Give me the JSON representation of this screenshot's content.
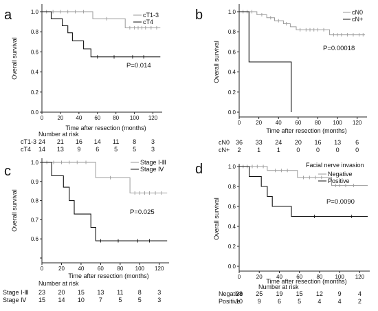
{
  "chart_data": [
    {
      "type": "line",
      "panel_label": "a",
      "xlabel": "Time after resection (months)",
      "ylabel": "Overall survival",
      "xlim": [
        0,
        130
      ],
      "ylim": [
        0,
        1.0
      ],
      "x_ticks": [
        0,
        20,
        40,
        60,
        80,
        100,
        120
      ],
      "y_ticks": [
        0.0,
        0.2,
        0.4,
        0.6,
        0.8,
        1.0
      ],
      "y_tick_labels": [
        "0.0",
        "0.2",
        "0.4",
        "0.6",
        "0.8",
        "1.0"
      ],
      "legend_position": "top-right",
      "p_value": "P=0.014",
      "risk_title": "Number at risk",
      "series": [
        {
          "name": "cT1-3",
          "color": "#9a9a9a",
          "steps": [
            [
              0,
              1.0
            ],
            [
              55,
              1.0
            ],
            [
              55,
              0.93
            ],
            [
              90,
              0.93
            ],
            [
              90,
              0.84
            ],
            [
              128,
              0.84
            ]
          ],
          "censors": [
            [
              5,
              1.0
            ],
            [
              12,
              1.0
            ],
            [
              20,
              1.0
            ],
            [
              28,
              1.0
            ],
            [
              36,
              1.0
            ],
            [
              45,
              1.0
            ],
            [
              70,
              0.93
            ],
            [
              95,
              0.84
            ],
            [
              100,
              0.84
            ],
            [
              104,
              0.84
            ],
            [
              108,
              0.84
            ],
            [
              112,
              0.84
            ],
            [
              118,
              0.84
            ],
            [
              124,
              0.84
            ]
          ]
        },
        {
          "name": "cT4",
          "color": "#111111",
          "steps": [
            [
              0,
              1.0
            ],
            [
              10,
              1.0
            ],
            [
              10,
              0.93
            ],
            [
              22,
              0.93
            ],
            [
              22,
              0.86
            ],
            [
              28,
              0.86
            ],
            [
              28,
              0.79
            ],
            [
              33,
              0.79
            ],
            [
              33,
              0.71
            ],
            [
              45,
              0.71
            ],
            [
              45,
              0.63
            ],
            [
              53,
              0.63
            ],
            [
              53,
              0.55
            ],
            [
              128,
              0.55
            ]
          ],
          "censors": [
            [
              60,
              0.55
            ],
            [
              78,
              0.55
            ],
            [
              98,
              0.55
            ],
            [
              110,
              0.55
            ]
          ]
        }
      ],
      "risk_table": {
        "rows": [
          {
            "label": "cT1-3",
            "values": [
              "24",
              "21",
              "16",
              "14",
              "11",
              "8",
              "3"
            ]
          },
          {
            "label": "cT4",
            "values": [
              "14",
              "13",
              "9",
              "6",
              "5",
              "5",
              "3"
            ]
          }
        ]
      }
    },
    {
      "type": "line",
      "panel_label": "b",
      "xlabel": "Time after resection (months)",
      "ylabel": "Overall survival",
      "xlim": [
        0,
        130
      ],
      "ylim": [
        0,
        1.0
      ],
      "x_ticks": [
        0,
        20,
        40,
        60,
        80,
        100,
        120
      ],
      "y_ticks": [
        0.0,
        0.2,
        0.4,
        0.6,
        0.8,
        1.0
      ],
      "y_tick_labels": [
        "0.0",
        "0.2",
        "0.4",
        "0.6",
        "0.8",
        "1.0"
      ],
      "legend_position": "top-right",
      "p_value": "P=0.00018",
      "risk_title": "",
      "series": [
        {
          "name": "cN0",
          "color": "#9a9a9a",
          "steps": [
            [
              0,
              1.0
            ],
            [
              18,
              1.0
            ],
            [
              18,
              0.97
            ],
            [
              28,
              0.97
            ],
            [
              28,
              0.94
            ],
            [
              36,
              0.94
            ],
            [
              36,
              0.91
            ],
            [
              45,
              0.91
            ],
            [
              45,
              0.88
            ],
            [
              52,
              0.88
            ],
            [
              52,
              0.85
            ],
            [
              58,
              0.85
            ],
            [
              58,
              0.82
            ],
            [
              92,
              0.82
            ],
            [
              92,
              0.77
            ],
            [
              128,
              0.77
            ]
          ],
          "censors": [
            [
              4,
              1.0
            ],
            [
              8,
              1.0
            ],
            [
              13,
              1.0
            ],
            [
              23,
              0.97
            ],
            [
              32,
              0.94
            ],
            [
              40,
              0.91
            ],
            [
              48,
              0.88
            ],
            [
              62,
              0.82
            ],
            [
              68,
              0.82
            ],
            [
              72,
              0.82
            ],
            [
              76,
              0.82
            ],
            [
              80,
              0.82
            ],
            [
              86,
              0.82
            ],
            [
              96,
              0.77
            ],
            [
              100,
              0.77
            ],
            [
              104,
              0.77
            ],
            [
              110,
              0.77
            ],
            [
              116,
              0.77
            ],
            [
              122,
              0.77
            ],
            [
              126,
              0.77
            ]
          ]
        },
        {
          "name": "cN+",
          "color": "#111111",
          "steps": [
            [
              0,
              1.0
            ],
            [
              10,
              1.0
            ],
            [
              10,
              0.5
            ],
            [
              53,
              0.5
            ],
            [
              53,
              0.0
            ]
          ],
          "censors": []
        }
      ],
      "risk_table": {
        "rows": [
          {
            "label": "cN0",
            "values": [
              "36",
              "33",
              "24",
              "20",
              "16",
              "13",
              "6"
            ]
          },
          {
            "label": "cN+",
            "values": [
              "2",
              "1",
              "1",
              "0",
              "0",
              "0",
              "0"
            ]
          }
        ]
      }
    },
    {
      "type": "line",
      "panel_label": "c",
      "xlabel": "Time after resection (months)",
      "ylabel": "Overall survival",
      "xlim": [
        0,
        130
      ],
      "ylim": [
        0.5,
        1.0
      ],
      "x_ticks": [
        0,
        20,
        40,
        60,
        80,
        100,
        120
      ],
      "y_ticks": [
        0.5,
        0.6,
        0.7,
        0.8,
        0.9,
        1.0
      ],
      "y_tick_labels": [
        "",
        "0.6",
        "0.7",
        "0.8",
        "0.9",
        "1.0"
      ],
      "legend_position": "top-right",
      "p_value": "P=0.025",
      "risk_title": "Number at risk",
      "series": [
        {
          "name": "Stage Ⅰ-Ⅲ",
          "color": "#9a9a9a",
          "steps": [
            [
              0,
              1.0
            ],
            [
              55,
              1.0
            ],
            [
              55,
              0.92
            ],
            [
              90,
              0.92
            ],
            [
              90,
              0.84
            ],
            [
              128,
              0.84
            ]
          ],
          "censors": [
            [
              5,
              1.0
            ],
            [
              12,
              1.0
            ],
            [
              20,
              1.0
            ],
            [
              28,
              1.0
            ],
            [
              36,
              1.0
            ],
            [
              45,
              1.0
            ],
            [
              70,
              0.92
            ],
            [
              95,
              0.84
            ],
            [
              100,
              0.84
            ],
            [
              105,
              0.84
            ],
            [
              110,
              0.84
            ],
            [
              116,
              0.84
            ],
            [
              122,
              0.84
            ]
          ]
        },
        {
          "name": "Stage Ⅳ",
          "color": "#111111",
          "steps": [
            [
              0,
              1.0
            ],
            [
              10,
              1.0
            ],
            [
              10,
              0.93
            ],
            [
              22,
              0.93
            ],
            [
              22,
              0.87
            ],
            [
              28,
              0.87
            ],
            [
              28,
              0.8
            ],
            [
              33,
              0.8
            ],
            [
              33,
              0.73
            ],
            [
              50,
              0.73
            ],
            [
              50,
              0.66
            ],
            [
              55,
              0.66
            ],
            [
              55,
              0.59
            ],
            [
              128,
              0.59
            ]
          ],
          "censors": [
            [
              60,
              0.59
            ],
            [
              78,
              0.59
            ],
            [
              98,
              0.59
            ],
            [
              110,
              0.59
            ]
          ]
        }
      ],
      "risk_table": {
        "rows": [
          {
            "label": "Stage Ⅰ-Ⅲ",
            "values": [
              "23",
              "20",
              "15",
              "13",
              "11",
              "8",
              "3"
            ]
          },
          {
            "label": "Stage Ⅳ",
            "values": [
              "15",
              "14",
              "10",
              "7",
              "5",
              "5",
              "3"
            ]
          }
        ]
      }
    },
    {
      "type": "line",
      "panel_label": "d",
      "xlabel": "Time after resection (months)",
      "ylabel": "Overall survival",
      "xlim": [
        0,
        130
      ],
      "ylim": [
        0.0,
        1.0
      ],
      "x_ticks": [
        0,
        20,
        40,
        60,
        80,
        100,
        120
      ],
      "y_ticks": [
        0.0,
        0.2,
        0.4,
        0.6,
        0.8,
        1.0
      ],
      "y_tick_labels": [
        "0.0",
        "0.2",
        "0.4",
        "0.6",
        "0.8",
        "1.0"
      ],
      "legend_position": "top-right",
      "legend_title": "Facial nerve invasion",
      "p_value": "P=0.0090",
      "risk_title": "Number at risk",
      "series": [
        {
          "name": "Negative",
          "color": "#9a9a9a",
          "steps": [
            [
              0,
              1.0
            ],
            [
              28,
              1.0
            ],
            [
              28,
              0.96
            ],
            [
              58,
              0.96
            ],
            [
              58,
              0.89
            ],
            [
              92,
              0.89
            ],
            [
              92,
              0.81
            ],
            [
              128,
              0.81
            ]
          ],
          "censors": [
            [
              4,
              1.0
            ],
            [
              8,
              1.0
            ],
            [
              13,
              1.0
            ],
            [
              18,
              1.0
            ],
            [
              24,
              1.0
            ],
            [
              36,
              0.96
            ],
            [
              42,
              0.96
            ],
            [
              48,
              0.96
            ],
            [
              64,
              0.89
            ],
            [
              70,
              0.89
            ],
            [
              76,
              0.89
            ],
            [
              82,
              0.89
            ],
            [
              96,
              0.81
            ],
            [
              100,
              0.81
            ],
            [
              106,
              0.81
            ],
            [
              114,
              0.81
            ]
          ]
        },
        {
          "name": "Positive",
          "color": "#111111",
          "steps": [
            [
              0,
              1.0
            ],
            [
              10,
              1.0
            ],
            [
              10,
              0.9
            ],
            [
              22,
              0.9
            ],
            [
              22,
              0.8
            ],
            [
              28,
              0.8
            ],
            [
              28,
              0.7
            ],
            [
              33,
              0.7
            ],
            [
              33,
              0.6
            ],
            [
              52,
              0.6
            ],
            [
              52,
              0.5
            ],
            [
              128,
              0.5
            ]
          ],
          "censors": [
            [
              75,
              0.5
            ],
            [
              112,
              0.5
            ]
          ]
        }
      ],
      "risk_table": {
        "rows": [
          {
            "label": "Negative",
            "values": [
              "28",
              "25",
              "19",
              "15",
              "12",
              "9",
              "4"
            ]
          },
          {
            "label": "Positive",
            "values": [
              "10",
              "9",
              "6",
              "5",
              "4",
              "4",
              "2"
            ]
          }
        ]
      }
    }
  ]
}
